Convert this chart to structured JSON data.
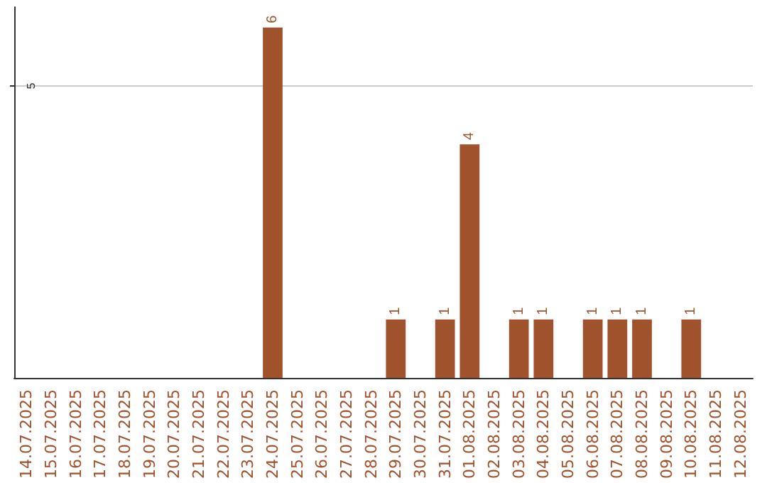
{
  "chart_data": {
    "type": "bar",
    "categories": [
      "14.07.2025",
      "15.07.2025",
      "16.07.2025",
      "17.07.2025",
      "18.07.2025",
      "19.07.2025",
      "20.07.2025",
      "21.07.2025",
      "22.07.2025",
      "23.07.2025",
      "24.07.2025",
      "25.07.2025",
      "26.07.2025",
      "27.07.2025",
      "28.07.2025",
      "29.07.2025",
      "30.07.2025",
      "31.07.2025",
      "01.08.2025",
      "02.08.2025",
      "03.08.2025",
      "04.08.2025",
      "05.08.2025",
      "06.08.2025",
      "07.08.2025",
      "08.08.2025",
      "09.08.2025",
      "10.08.2025",
      "11.08.2025",
      "12.08.2025"
    ],
    "values": [
      0,
      0,
      0,
      0,
      0,
      0,
      0,
      0,
      0,
      0,
      6,
      0,
      0,
      0,
      0,
      1,
      0,
      1,
      4,
      0,
      1,
      1,
      0,
      1,
      1,
      1,
      0,
      1,
      0,
      0
    ],
    "value_labels": [
      null,
      null,
      null,
      null,
      null,
      null,
      null,
      null,
      null,
      null,
      "6",
      null,
      null,
      null,
      null,
      "1",
      null,
      "1",
      "4",
      null,
      "1",
      "1",
      null,
      "1",
      "1",
      "1",
      null,
      "1",
      null,
      null
    ],
    "color": "#a0522d",
    "ylim": [
      0,
      6.35
    ],
    "yticks": [
      5
    ],
    "grid": "y"
  }
}
